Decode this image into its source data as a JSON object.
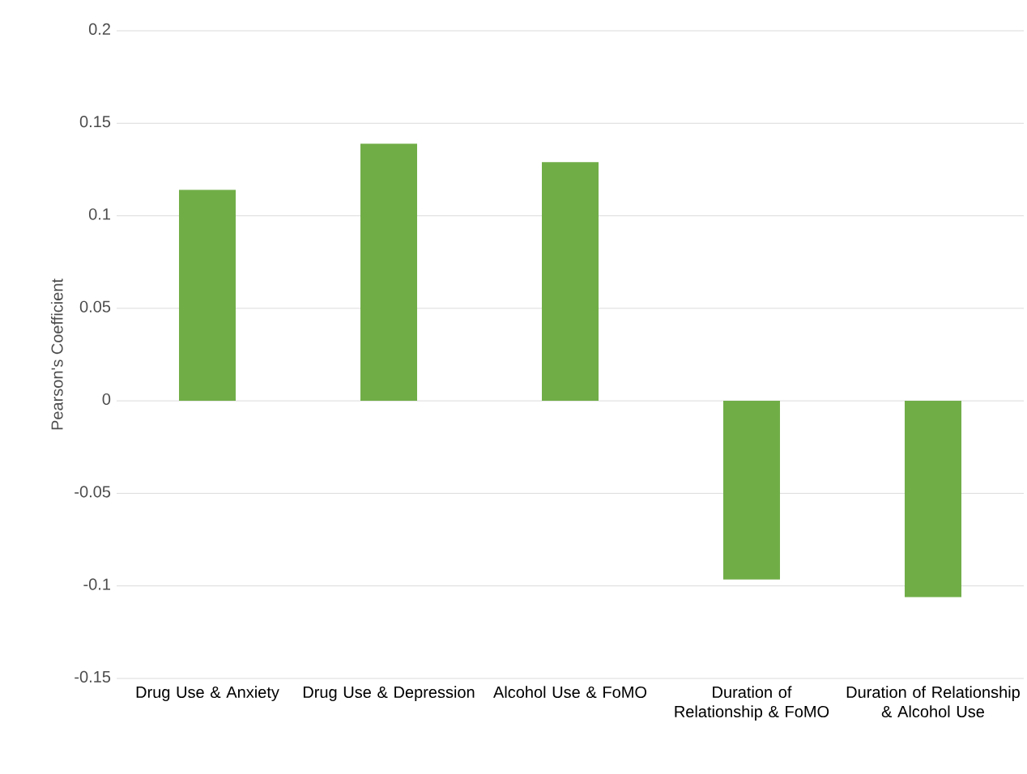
{
  "chart_data": {
    "type": "bar",
    "ylabel": "Pearson's Coefficient",
    "categories": [
      "Drug Use & Anxiety",
      "Drug Use & Depression",
      "Alcohol Use & FoMO",
      "Duration of Relationship & FoMO",
      "Duration of Relationship & Alcohol Use"
    ],
    "values": [
      0.114,
      0.139,
      0.129,
      -0.0965,
      -0.106
    ],
    "color": "#70ad47",
    "ylim": [
      -0.15,
      0.2
    ],
    "yticks": [
      -0.15,
      -0.1,
      -0.05,
      0,
      0.05,
      0.1,
      0.15,
      0.2
    ],
    "grid": "y"
  }
}
